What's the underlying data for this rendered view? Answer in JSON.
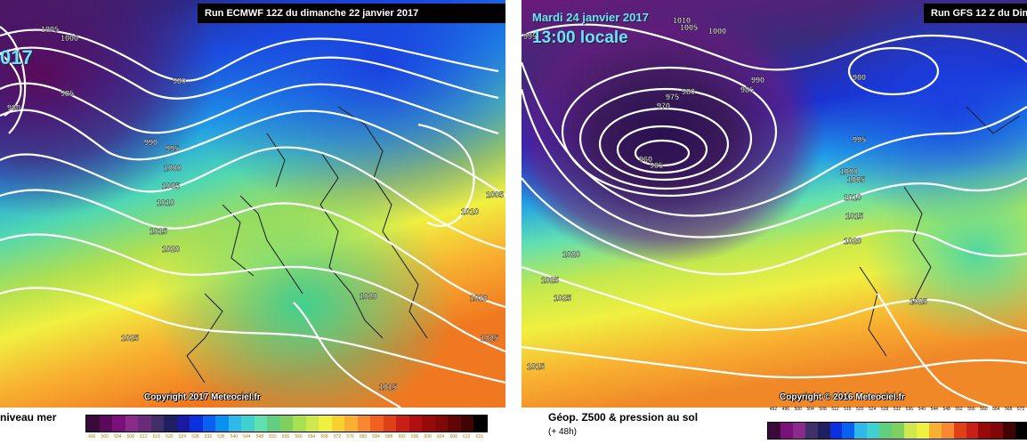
{
  "left_map": {
    "run_title": "Run ECMWF 12Z du dimanche 22 janvier 2017",
    "year_cut": "017",
    "copyright": "Copyright 2017 Meteociel.fr",
    "caption": "niveau mer",
    "isobar_labels": [
      "1005",
      "1000",
      "985",
      "980",
      "980",
      "990",
      "995",
      "1000",
      "1005",
      "1010",
      "1015",
      "1020",
      "1020",
      "1025",
      "1020",
      "1025",
      "1015",
      "1005",
      "1010"
    ],
    "scale_values": [
      "496",
      "500",
      "504",
      "508",
      "512",
      "516",
      "520",
      "524",
      "528",
      "532",
      "536",
      "540",
      "544",
      "548",
      "552",
      "556",
      "560",
      "564",
      "568",
      "572",
      "576",
      "580",
      "584",
      "588",
      "592",
      "596",
      "600",
      "604",
      "608",
      "612",
      "616"
    ]
  },
  "right_map": {
    "date_line": "Mardi 24 janvier 2017",
    "time_line": "13:00 locale",
    "run_title": "Run GFS 12 Z du Dim",
    "copyright": "Copyright © 2016 Meteociel.fr",
    "caption": "Géop. Z500 & pression au sol",
    "subcaption": "(+ 48h)",
    "isobar_labels": [
      "995",
      "1010",
      "1005",
      "1000",
      "980",
      "975",
      "970",
      "960",
      "965",
      "990",
      "985",
      "980",
      "995",
      "1000",
      "1005",
      "1010",
      "1015",
      "1020",
      "1020",
      "1025",
      "1025",
      "1025",
      "1015"
    ],
    "scale_values": [
      "492",
      "496",
      "500",
      "504",
      "508",
      "512",
      "516",
      "520",
      "524",
      "528",
      "532",
      "536",
      "540",
      "544",
      "548",
      "552",
      "556",
      "560",
      "564",
      "568",
      "572"
    ]
  },
  "colors": {
    "scale": [
      "#3a0a3a",
      "#5a0a5a",
      "#7a107a",
      "#8a2a8a",
      "#6a2a7a",
      "#40306a",
      "#202060",
      "#1a1aa0",
      "#0a30e0",
      "#0a60f0",
      "#0a90f0",
      "#30b8e8",
      "#40d0d0",
      "#60e0b0",
      "#60d080",
      "#80d060",
      "#a8e050",
      "#d0e850",
      "#f0f040",
      "#f8d030",
      "#f8b030",
      "#f88830",
      "#f06020",
      "#e04018",
      "#c82018",
      "#b01010",
      "#980a0a",
      "#800808",
      "#600606",
      "#400404",
      "#000000"
    ]
  }
}
